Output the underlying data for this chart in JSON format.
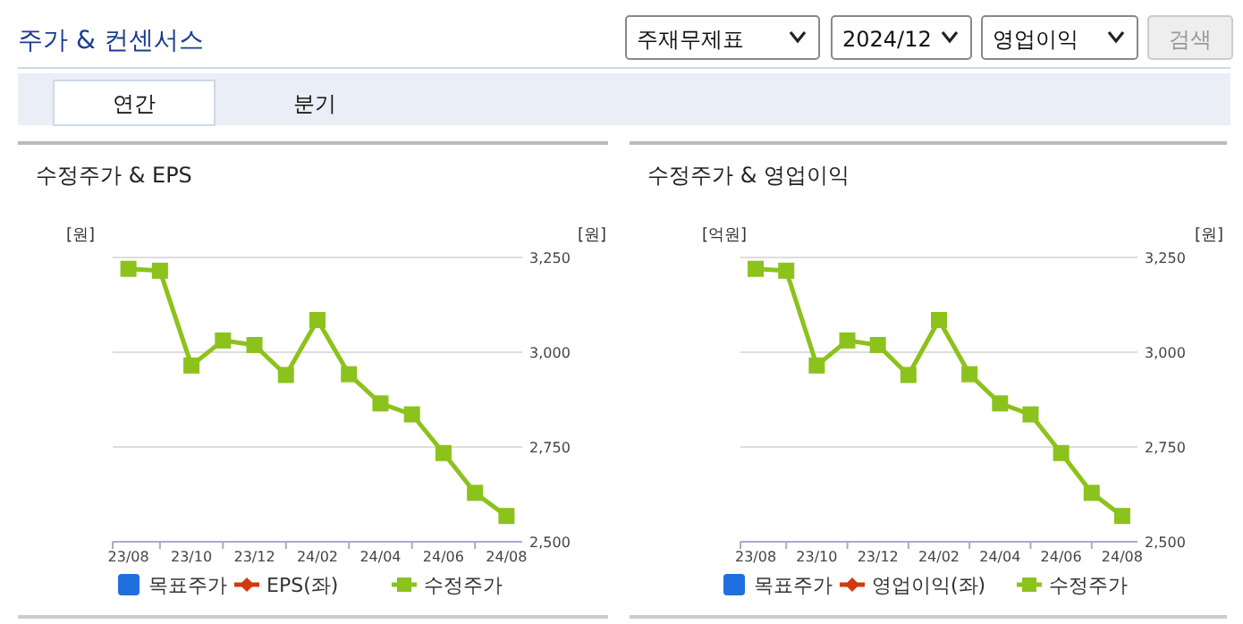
{
  "chart_data": [
    {
      "type": "other",
      "title": "주가 & 컨센서스",
      "annotations": [
        "주재무제표",
        "2024/12",
        "영업이익",
        "검색",
        "연간",
        "분기"
      ]
    },
    {
      "type": "line",
      "title": "수정주가 & EPS",
      "ylabel": "[원]",
      "y2label": "[원]",
      "categories": [
        "23/08",
        null,
        "23/10",
        null,
        "23/12",
        null,
        "24/02",
        null,
        "24/04",
        null,
        "24/06",
        null,
        "24/08"
      ],
      "y2lim": [
        2500,
        3250
      ],
      "y2ticks": [
        {
          "value": 2500,
          "label": "2,500"
        },
        {
          "value": 2750,
          "label": "2,750"
        },
        {
          "value": 3000,
          "label": "3,000"
        },
        {
          "value": 3250,
          "label": "3,250"
        }
      ],
      "grid": "y",
      "legend": "bottom",
      "line_style": "solid",
      "series": [
        {
          "name": "목표주가",
          "type": "scatter",
          "marker": "square",
          "color": "#1f6fde",
          "axis": "y2",
          "values": [
            null,
            null,
            null,
            null,
            null,
            null,
            null,
            null,
            null,
            null,
            null,
            null,
            null
          ]
        },
        {
          "name": "EPS(좌)",
          "type": "line",
          "marker": "diamond",
          "color": "#d2390f",
          "values": [
            null,
            null,
            null,
            null,
            null,
            null,
            null,
            null,
            null,
            null,
            null,
            null,
            null
          ]
        },
        {
          "name": "수정주가",
          "type": "line",
          "marker": "square",
          "color": "#8cc21c",
          "axis": "y2",
          "values": [
            3220,
            3215,
            2965,
            3031,
            3019,
            2940,
            3085,
            2942,
            2865,
            2836,
            2734,
            2629,
            2568
          ]
        }
      ]
    },
    {
      "type": "line",
      "title": "수정주가 & 영업이익",
      "ylabel": "[억원]",
      "y2label": "[원]",
      "categories": [
        "23/08",
        null,
        "23/10",
        null,
        "23/12",
        null,
        "24/02",
        null,
        "24/04",
        null,
        "24/06",
        null,
        "24/08"
      ],
      "y2lim": [
        2500,
        3250
      ],
      "y2ticks": [
        {
          "value": 2500,
          "label": "2,500"
        },
        {
          "value": 2750,
          "label": "2,750"
        },
        {
          "value": 3000,
          "label": "3,000"
        },
        {
          "value": 3250,
          "label": "3,250"
        }
      ],
      "grid": "y",
      "legend": "bottom",
      "line_style": "solid",
      "series": [
        {
          "name": "목표주가",
          "type": "scatter",
          "marker": "square",
          "color": "#1f6fde",
          "axis": "y2",
          "values": [
            null,
            null,
            null,
            null,
            null,
            null,
            null,
            null,
            null,
            null,
            null,
            null,
            null
          ]
        },
        {
          "name": "영업이익(좌)",
          "type": "line",
          "marker": "diamond",
          "color": "#d2390f",
          "values": [
            null,
            null,
            null,
            null,
            null,
            null,
            null,
            null,
            null,
            null,
            null,
            null,
            null
          ]
        },
        {
          "name": "수정주가",
          "type": "line",
          "marker": "square",
          "color": "#8cc21c",
          "axis": "y2",
          "values": [
            3220,
            3215,
            2965,
            3031,
            3019,
            2940,
            3085,
            2942,
            2865,
            2836,
            2734,
            2629,
            2568
          ]
        }
      ]
    }
  ]
}
